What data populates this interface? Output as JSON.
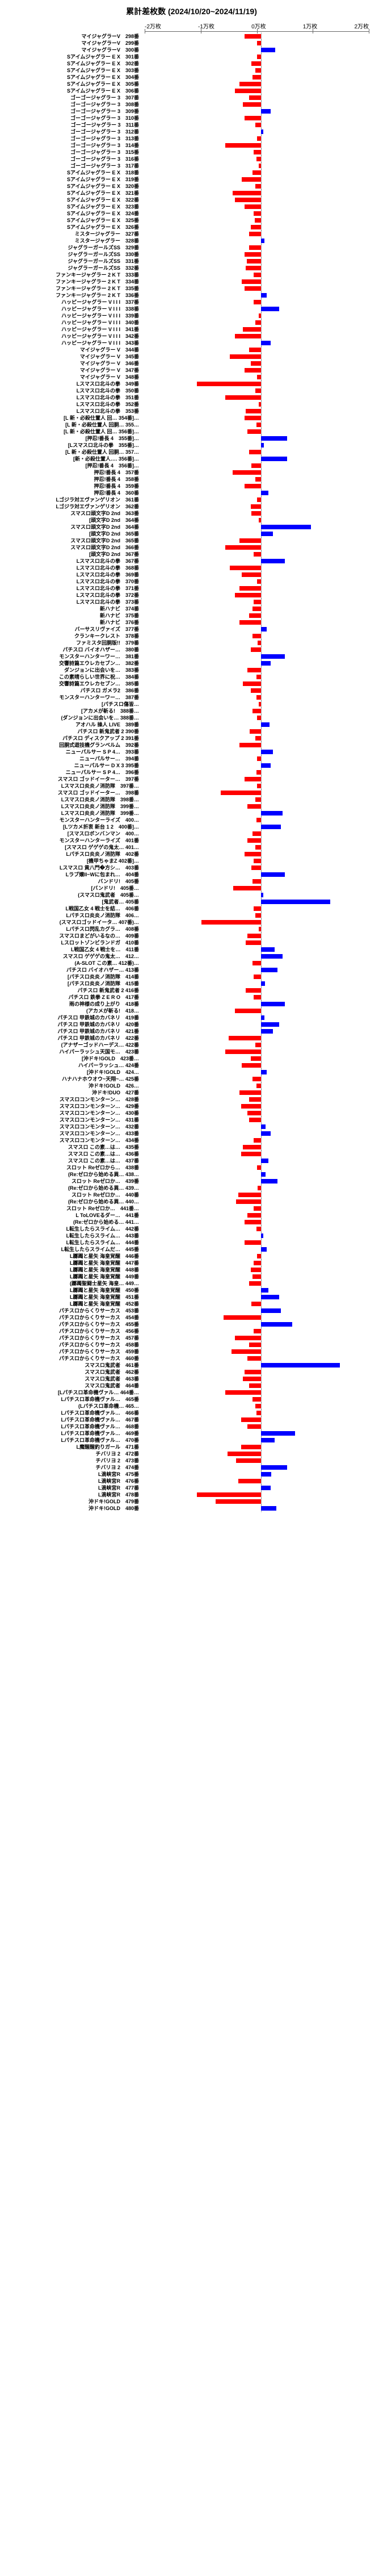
{
  "chart": {
    "title": "累計差枚数 (2024/10/20~2024/11/19)",
    "title_fontsize": 14,
    "axis_labels": [
      "-2万枚",
      "-1万枚",
      "0万枚",
      "1万枚",
      "2万枚"
    ],
    "axis_fontsize": 10,
    "label_fontsize": 9,
    "xlim_min": -25000,
    "xlim_max": 25000,
    "colors": {
      "negative": "#ff0000",
      "positive": "#0000ff",
      "background": "#ffffff",
      "grid": "#dddddd"
    },
    "rows": [
      {
        "label": "マイジャグラーV　298番",
        "value": -3500
      },
      {
        "label": "マイジャグラーV　299番",
        "value": -800
      },
      {
        "label": "マイジャグラーV　300番",
        "value": 3000
      },
      {
        "label": "Sアイムジャグラー E X　301番",
        "value": -800
      },
      {
        "label": "Sアイムジャグラー E X　302番",
        "value": -2000
      },
      {
        "label": "Sアイムジャグラー E X　303番",
        "value": -1200
      },
      {
        "label": "Sアイムジャグラー E X　304番",
        "value": -1800
      },
      {
        "label": "Sアイムジャグラー E X　305番",
        "value": -4500
      },
      {
        "label": "Sアイムジャグラー E X　306番",
        "value": -5500
      },
      {
        "label": "ゴーゴージャグラー 3　307番",
        "value": -2500
      },
      {
        "label": "ゴーゴージャグラー 3　308番",
        "value": -3800
      },
      {
        "label": "ゴーゴージャグラー 3　309番",
        "value": 2000
      },
      {
        "label": "ゴーゴージャグラー 3　310番",
        "value": -3500
      },
      {
        "label": "ゴーゴージャグラー 3　311番",
        "value": -1200
      },
      {
        "label": "ゴーゴージャグラー 3　312番",
        "value": 500
      },
      {
        "label": "ゴーゴージャグラー 3　313番",
        "value": -800
      },
      {
        "label": "ゴーゴージャグラー 3　314番",
        "value": -7500
      },
      {
        "label": "ゴーゴージャグラー 3　315番",
        "value": -1500
      },
      {
        "label": "ゴーゴージャグラー 3　316番",
        "value": -900
      },
      {
        "label": "ゴーゴージャグラー 3　317番",
        "value": -500
      },
      {
        "label": "Sアイムジャグラー E X　318番",
        "value": -1800
      },
      {
        "label": "Sアイムジャグラー E X　319番",
        "value": -4000
      },
      {
        "label": "Sアイムジャグラー E X　320番",
        "value": -1200
      },
      {
        "label": "Sアイムジャグラー E X　321番",
        "value": -6000
      },
      {
        "label": "Sアイムジャグラー E X　322番",
        "value": -5500
      },
      {
        "label": "Sアイムジャグラー E X　323番",
        "value": -3500
      },
      {
        "label": "Sアイムジャグラー E X　324番",
        "value": -1500
      },
      {
        "label": "Sアイムジャグラー E X　325番",
        "value": -1300
      },
      {
        "label": "Sアイムジャグラー E X　326番",
        "value": -2200
      },
      {
        "label": "ミスタージャグラー　327番",
        "value": -2500
      },
      {
        "label": "ミスタージャグラー　328番",
        "value": 700
      },
      {
        "label": "ジャグラーガールズSS　329番",
        "value": -2500
      },
      {
        "label": "ジャグラーガールズSS　330番",
        "value": -3500
      },
      {
        "label": "ジャグラーガールズSS　331番",
        "value": -3000
      },
      {
        "label": "ジャグラーガールズSS　332番",
        "value": -3200
      },
      {
        "label": "ファンキージャグラー 2 K T　333番",
        "value": -1500
      },
      {
        "label": "ファンキージャグラー 2 K T　334番",
        "value": -4000
      },
      {
        "label": "ファンキージャグラー 2 K T　335番",
        "value": -3500
      },
      {
        "label": "ファンキージャグラー 2 K T　336番",
        "value": 1200
      },
      {
        "label": "ハッピージャグラー V I I I　337番",
        "value": -1500
      },
      {
        "label": "ハッピージャグラー V I I I　338番",
        "value": 3800
      },
      {
        "label": "ハッピージャグラー V I I I　339番",
        "value": -500
      },
      {
        "label": "ハッピージャグラー V I I I　340番",
        "value": -1200
      },
      {
        "label": "ハッピージャグラー V I I I　341番",
        "value": -3800
      },
      {
        "label": "ハッピージャグラー V I I I　342番",
        "value": -5500
      },
      {
        "label": "ハッピージャグラー V I I I　343番",
        "value": 2000
      },
      {
        "label": "マイジャグラー V　344番",
        "value": -2500
      },
      {
        "label": "マイジャグラー V　345番",
        "value": -6500
      },
      {
        "label": "マイジャグラー V　346番",
        "value": -2200
      },
      {
        "label": "マイジャグラー V　347番",
        "value": -3500
      },
      {
        "label": "マイジャグラー V　348番",
        "value": -800
      },
      {
        "label": "Lスマスロ北斗の拳　349番",
        "value": -13500
      },
      {
        "label": "Lスマスロ北斗の拳　350番",
        "value": -1200
      },
      {
        "label": "Lスマスロ北斗の拳　351番",
        "value": -7500
      },
      {
        "label": "Lスマスロ北斗の拳　352番",
        "value": -500
      },
      {
        "label": "Lスマスロ北斗の拳　353番",
        "value": -3200
      },
      {
        "label": "[L 新・必殺仕置人 回… 354番]…",
        "value": -3500
      },
      {
        "label": "[L 新・必殺仕置人 回胴… 355…",
        "value": -1000
      },
      {
        "label": "[L 新・必殺仕置人 回… 356番]…",
        "value": -2800
      },
      {
        "label": "[押忍!番長 4　355番]…",
        "value": 5500
      },
      {
        "label": "[Lスマスロ北斗の拳　355番]…",
        "value": 600
      },
      {
        "label": "[L 新・必殺仕置人 回胴… 357…",
        "value": -2500
      },
      {
        "label": "[新・必殺仕置人…. 356番]…",
        "value": 5500
      },
      {
        "label": "[押忍!番長 4　356番]…",
        "value": -2000
      },
      {
        "label": "押忍!番長 4　357番",
        "value": -6000
      },
      {
        "label": "押忍!番長 4　358番",
        "value": -1200
      },
      {
        "label": "押忍!番長 4　359番",
        "value": -3500
      },
      {
        "label": "押忍!番長 4　360番",
        "value": 1500
      },
      {
        "label": "Lゴジラ対エヴァンゲリオン　361番",
        "value": -800
      },
      {
        "label": "Lゴジラ対エヴァンゲリオン　362番",
        "value": -2200
      },
      {
        "label": "スマスロ頭文字D 2nd　363番",
        "value": -2000
      },
      {
        "label": "[頭文字D 2nd　364番",
        "value": -500
      },
      {
        "label": "スマスロ頭文字D 2nd　364番",
        "value": 10500
      },
      {
        "label": "[頭文字D 2nd　365番",
        "value": 2500
      },
      {
        "label": "スマスロ頭文字D 2nd　365番",
        "value": -4500
      },
      {
        "label": "スマスロ頭文字D 2nd　366番",
        "value": -7500
      },
      {
        "label": "[頭文字D 2nd　367番",
        "value": -1500
      },
      {
        "label": "Lスマスロ北斗の拳　367番",
        "value": 5000
      },
      {
        "label": "Lスマスロ北斗の拳　368番",
        "value": -6500
      },
      {
        "label": "Lスマスロ北斗の拳　369番",
        "value": -4000
      },
      {
        "label": "Lスマスロ北斗の拳　370番",
        "value": -800
      },
      {
        "label": "Lスマスロ北斗の拳　371番",
        "value": -4500
      },
      {
        "label": "Lスマスロ北斗の拳　372番",
        "value": -5500
      },
      {
        "label": "Lスマスロ北斗の拳　373番",
        "value": -1500
      },
      {
        "label": "新ハナビ　374番",
        "value": -1800
      },
      {
        "label": "新ハナビ　375番",
        "value": -2500
      },
      {
        "label": "新ハナビ　376番",
        "value": -4500
      },
      {
        "label": "バーサスリヴァイズ　377番",
        "value": 1200
      },
      {
        "label": "クランキークレスト　378番",
        "value": -1800
      },
      {
        "label": "ファミスタ回胴版!!　379番",
        "value": -700
      },
      {
        "label": "パチスロ バイオハザー…　380番",
        "value": -2200
      },
      {
        "label": "モンスターハンターワー…　381番",
        "value": 5000
      },
      {
        "label": "交響詩篇エウレカセブン…　382番",
        "value": 2000
      },
      {
        "label": "ダンジョンに出会いを…　383番",
        "value": -2800
      },
      {
        "label": "この素晴らしい世界に祝…　384番",
        "value": -1000
      },
      {
        "label": "交響詩篇エウレカセブン…　385番",
        "value": -3800
      },
      {
        "label": "パチスロ ガメラ2　386番",
        "value": -2200
      },
      {
        "label": "モンスターハンターワー…　387番",
        "value": -1000
      },
      {
        "label": "[パチスロ傷皆…",
        "value": -500
      },
      {
        "label": "[アカメが斬る!　388番…",
        "value": -1800
      },
      {
        "label": "(ダンジョンに出会いを… 388番…",
        "value": -800
      },
      {
        "label": "アオハル 操人 LIVE　389番",
        "value": 1800
      },
      {
        "label": "パチスロ 新鬼武者 2  390番",
        "value": -2400
      },
      {
        "label": "パチスロ ディスクアップ 2  391番",
        "value": -1200
      },
      {
        "label": "回胴式遊技機グランベルム　392番",
        "value": -4500
      },
      {
        "label": "ニューパルサー S P 4…　393番",
        "value": 2500
      },
      {
        "label": "ニューパルサー…　394番",
        "value": -800
      },
      {
        "label": "ニューパルサー D X 3  395番",
        "value": 2000
      },
      {
        "label": "ニューパルサー S P 4…　396番",
        "value": -1000
      },
      {
        "label": "スマスロ ゴッドイーター…　397番",
        "value": -3500
      },
      {
        "label": "Lスマスロ炎炎ノ消防隊　397番…",
        "value": -800
      },
      {
        "label": "スマスロ ゴッドイーター…　398番",
        "value": -8500
      },
      {
        "label": "Lスマスロ炎炎ノ消防隊　398番…",
        "value": -1200
      },
      {
        "label": "Lスマスロ炎炎ノ消防隊　399番…",
        "value": -2800
      },
      {
        "label": "Lスマスロ炎炎ノ消防隊　399番…",
        "value": 4500
      },
      {
        "label": "モンスターハンターライズ　400…",
        "value": -1000
      },
      {
        "label": "[Lツカメ折衷 新台 1 2　400番]…",
        "value": 4200
      },
      {
        "label": "[スマスロボンバンマン　400…",
        "value": -1800
      },
      {
        "label": "モンスターハンターライズ　401番",
        "value": -2800
      },
      {
        "label": "[スマスロ ゲゲゲの鬼太… 401…",
        "value": -1200
      },
      {
        "label": "Lパチスロ炎炎ノ消防隊　402番",
        "value": -3500
      },
      {
        "label": "[機甲ちゃまZ  402番]…",
        "value": -1500
      },
      {
        "label": "Lスマスロ 黄八門�方シ…　403番",
        "value": -2000
      },
      {
        "label": "Lラブ嬢II~Wに包まれ…　404番",
        "value": 5000
      },
      {
        "label": "バンドリ!　405番",
        "value": -1800
      },
      {
        "label": "[バンドリ!　405番…",
        "value": -5800
      },
      {
        "label": "(スマスロ鬼武者　405番…",
        "value": 500
      },
      {
        "label": "[鬼武者…  405番",
        "value": 14500
      },
      {
        "label": "L戦国乙女 4 戦士を結…　406番",
        "value": -1500
      },
      {
        "label": "Lパチスロ炎炎ノ消防隊　406…",
        "value": -1200
      },
      {
        "label": "(スマスロゴッドイータ…  407番)…",
        "value": -12500
      },
      {
        "label": "Lパチスロ閃乱カグラ…　408番",
        "value": -500
      },
      {
        "label": "スマスロまどがいるなの…　409番",
        "value": -2800
      },
      {
        "label": "Lスロットゾンビランドガ　410番",
        "value": -3200
      },
      {
        "label": "L戦国乙女 4 戦士を…　411番",
        "value": 2800
      },
      {
        "label": "スマスロ ゲゲゲの鬼太…　412…",
        "value": 4500
      },
      {
        "label": "(A-SLOT この素…  412番)…",
        "value": -1800
      },
      {
        "label": "パチスロ バイオハザー…  413番",
        "value": 3500
      },
      {
        "label": "[パチスロ炎炎ノ消防隊　414番",
        "value": -1500
      },
      {
        "label": "[パチスロ炎炎ノ消防隊　415番",
        "value": 800
      },
      {
        "label": "パチスロ 新鬼武者 2  416番",
        "value": -3200
      },
      {
        "label": "パチスロ 鉄拳 Z E R O　417番",
        "value": -1500
      },
      {
        "label": "雨の神様の成り上がり　418番",
        "value": 5000
      },
      {
        "label": "(アカメが斬る!　418…",
        "value": -5500
      },
      {
        "label": "パチスロ 甲鉄城のカバネリ　419番",
        "value": 700
      },
      {
        "label": "パチスロ 甲鉄城のカバネリ　420番",
        "value": 3800
      },
      {
        "label": "パチスロ 甲鉄城のカバネリ　421番",
        "value": 2500
      },
      {
        "label": "パチスロ 甲鉄城のカバネリ　422番",
        "value": -6800
      },
      {
        "label": "(アナザーゴッドハーデス…  422番",
        "value": -1200
      },
      {
        "label": "ハイパーラッシュ天国モ…　423番",
        "value": -7500
      },
      {
        "label": "[沖ドキ!GOLD　423番…",
        "value": -2200
      },
      {
        "label": "ハイパーラッシュ…  424番",
        "value": -4000
      },
      {
        "label": "[沖ドキ!GOLD　424…",
        "value": 1200
      },
      {
        "label": "ハナハナホウオウ~天翔~…  425番",
        "value": -1800
      },
      {
        "label": "沖ドキ!GOLD　426…",
        "value": -1000
      },
      {
        "label": "沖ドキ!DUO　427番",
        "value": -4500
      },
      {
        "label": "スマスロコンモンターン…　428番",
        "value": -2500
      },
      {
        "label": "スマスロコンモンターン…　429番",
        "value": -4200
      },
      {
        "label": "スマスロコンモンターン…　430番",
        "value": -2800
      },
      {
        "label": "スマスロコンモンターン…　431番",
        "value": -2500
      },
      {
        "label": "スマスロコンモンターン…　432番",
        "value": 1000
      },
      {
        "label": "スマスロコンモンターン…　433番",
        "value": 2000
      },
      {
        "label": "スマスロコンモンターン…　434番",
        "value": -1500
      },
      {
        "label": "スマスロ この素…は…　435番",
        "value": -3800
      },
      {
        "label": "スマスロ この素…は…　436番",
        "value": -4200
      },
      {
        "label": "スマスロ この素…は…　437番",
        "value": 1500
      },
      {
        "label": "スロット Reゼロから…　438番",
        "value": -800
      },
      {
        "label": "(Re:ゼロから始める異… 438…",
        "value": 1000
      },
      {
        "label": "スロット Reゼロか…　439番",
        "value": 3500
      },
      {
        "label": "(Re:ゼロから始める異… 439…",
        "value": -700
      },
      {
        "label": "スロット Reゼロか…　440番",
        "value": -4800
      },
      {
        "label": "(Re:ゼロから始める異… 440…",
        "value": -5200
      },
      {
        "label": "スロット Reゼロか…　441番…",
        "value": -1500
      },
      {
        "label": "L ToLOVEるダー…　441番",
        "value": -2800
      },
      {
        "label": "(Re:ゼロから始める… 441…",
        "value": -3500
      },
      {
        "label": "L転生したらスライム…　442番",
        "value": -1000
      },
      {
        "label": "L転生したらスライム…　443番",
        "value": 500
      },
      {
        "label": "L転生したらスライム…　444番",
        "value": -3500
      },
      {
        "label": "L転生したらスライムだ…　445番",
        "value": 1200
      },
      {
        "label": "L躑躅と星矢 海皇覚醒　446番",
        "value": -800
      },
      {
        "label": "L躑躅と星矢 海皇覚醒　447番",
        "value": -1500
      },
      {
        "label": "L躑躅と星矢 海皇覚醒　448番",
        "value": -2200
      },
      {
        "label": "L躑躅と星矢 海皇覚醒　449番",
        "value": -1800
      },
      {
        "label": "(躑躅聖闘士星矢 海皇… 449…",
        "value": -2500
      },
      {
        "label": "L躑躅と星矢 海皇覚醒　450番",
        "value": 1500
      },
      {
        "label": "L躑躅と星矢 海皇覚醒　451番",
        "value": 3800
      },
      {
        "label": "L躑躅と星矢 海皇覚醒　452番",
        "value": -2000
      },
      {
        "label": "パチスロからくりサーカス　453番",
        "value": 4200
      },
      {
        "label": "パチスロからくりサーカス　454番",
        "value": -7800
      },
      {
        "label": "パチスロからくりサーカス　455番",
        "value": 6500
      },
      {
        "label": "パチスロからくりサーカス　456番",
        "value": -1500
      },
      {
        "label": "パチスロからくりサーカス　457番",
        "value": -5500
      },
      {
        "label": "パチスロからくりサーカス　458番",
        "value": -2500
      },
      {
        "label": "パチスロからくりサーカス　459番",
        "value": -6200
      },
      {
        "label": "パチスロからくりサーカス　460番",
        "value": -2800
      },
      {
        "label": "スマスロ鬼武者　461番",
        "value": 16500
      },
      {
        "label": "スマスロ鬼武者　462番",
        "value": -3500
      },
      {
        "label": "スマスロ鬼武者　463番",
        "value": -3800
      },
      {
        "label": "スマスロ鬼武者　464番",
        "value": -2500
      },
      {
        "label": "[Lパチスロ革命機ヴァル…  464番…",
        "value": -7500
      },
      {
        "label": "Lパチスロ革命機ヴァル…　465番",
        "value": -1800
      },
      {
        "label": "(Lパチスロ革命機… 465…",
        "value": -1200
      },
      {
        "label": "Lパチスロ革命機ヴァル…　466番",
        "value": -1000
      },
      {
        "label": "Lパチスロ革命機ヴァル…　467番",
        "value": -4200
      },
      {
        "label": "Lパチスロ革命機ヴァル…　468番",
        "value": -2800
      },
      {
        "label": "Lパチスロ革命機ヴァル…　469番",
        "value": 7200
      },
      {
        "label": "Lパチスロ革命機ヴァル…　470番",
        "value": 2800
      },
      {
        "label": "L魔醒醒釣りガール　471番",
        "value": -4200
      },
      {
        "label": "チバリヨ 2　472番",
        "value": -7000
      },
      {
        "label": "チバリヨ 2　473番",
        "value": -5200
      },
      {
        "label": "チバリヨ 2　474番",
        "value": 5500
      },
      {
        "label": "L滴峡宮R　475番",
        "value": 2200
      },
      {
        "label": "L滴峡宮R　476番",
        "value": -4800
      },
      {
        "label": "L滴峡宮R　477番",
        "value": 2000
      },
      {
        "label": "L滴峡宮R　478番",
        "value": -13500
      },
      {
        "label": "沖ドキ!GOLD　479番",
        "value": -9500
      },
      {
        "label": "沖ドキ!GOLD　480番",
        "value": 3200
      }
    ]
  }
}
